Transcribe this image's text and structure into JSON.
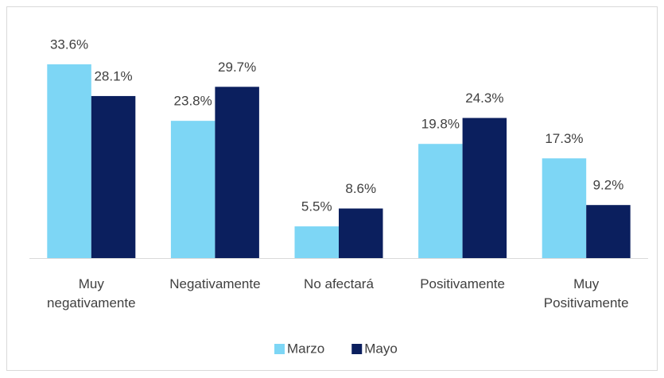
{
  "chart_data": {
    "type": "bar",
    "categories": [
      "Muy negativamente",
      "Negativamente",
      "No afectará",
      "Positivamente",
      "Muy Positivamente"
    ],
    "series": [
      {
        "name": "Marzo",
        "color": "#7dd6f5",
        "values": [
          33.6,
          23.8,
          5.5,
          19.8,
          17.3
        ],
        "value_labels": [
          "33.6%",
          "23.8%",
          "5.5%",
          "19.8%",
          "17.3%"
        ]
      },
      {
        "name": "Mayo",
        "color": "#0b1f5e",
        "values": [
          28.1,
          29.7,
          8.6,
          24.3,
          9.2
        ],
        "value_labels": [
          "28.1%",
          "29.7%",
          "8.6%",
          "24.3%",
          "9.2%"
        ]
      }
    ],
    "legend": "bottom"
  }
}
